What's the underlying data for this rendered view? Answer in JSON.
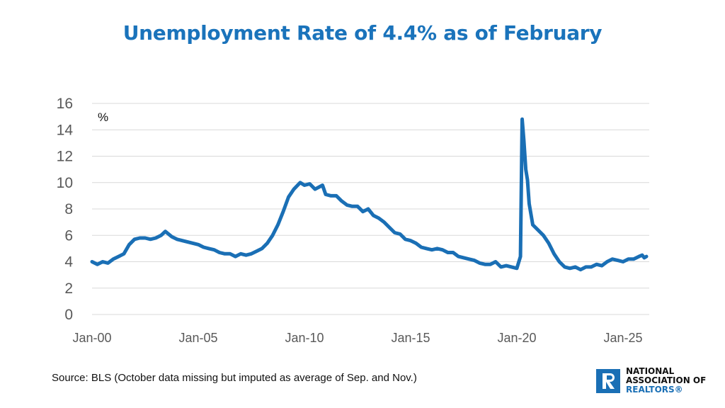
{
  "title": "Unemployment Rate of 4.4% as of February",
  "source": "Source: BLS (October data missing but imputed as average of Sep. and Nov.)",
  "logo": {
    "line1": "NATIONAL",
    "line2": "ASSOCIATION OF",
    "line3": "REALTORS®",
    "icon": "realtor-r-logo-icon"
  },
  "colors": {
    "line": "#1a6fb5",
    "title": "#1a73bb",
    "grid": "#d9d9d9",
    "axis_text": "#595959"
  },
  "chart_data": {
    "type": "line",
    "title": "Unemployment Rate of 4.4% as of February",
    "xlabel": "",
    "ylabel": "%",
    "ylim": [
      0,
      16
    ],
    "yticks": [
      0,
      2,
      4,
      6,
      8,
      10,
      12,
      14,
      16
    ],
    "xticks": [
      {
        "label": "Jan-00",
        "t": 2000.0
      },
      {
        "label": "Jan-05",
        "t": 2005.0
      },
      {
        "label": "Jan-10",
        "t": 2010.0
      },
      {
        "label": "Jan-15",
        "t": 2015.0
      },
      {
        "label": "Jan-20",
        "t": 2020.0
      },
      {
        "label": "Jan-25",
        "t": 2025.0
      }
    ],
    "xlim": [
      2000.0,
      2026.1
    ],
    "grid": true,
    "series": [
      {
        "name": "Unemployment rate",
        "points": [
          [
            2000.0,
            4.0
          ],
          [
            2000.25,
            3.8
          ],
          [
            2000.5,
            4.0
          ],
          [
            2000.75,
            3.9
          ],
          [
            2001.0,
            4.2
          ],
          [
            2001.25,
            4.4
          ],
          [
            2001.5,
            4.6
          ],
          [
            2001.75,
            5.3
          ],
          [
            2002.0,
            5.7
          ],
          [
            2002.25,
            5.8
          ],
          [
            2002.5,
            5.8
          ],
          [
            2002.75,
            5.7
          ],
          [
            2003.0,
            5.8
          ],
          [
            2003.25,
            6.0
          ],
          [
            2003.45,
            6.3
          ],
          [
            2003.75,
            5.9
          ],
          [
            2004.0,
            5.7
          ],
          [
            2004.25,
            5.6
          ],
          [
            2004.5,
            5.5
          ],
          [
            2004.75,
            5.4
          ],
          [
            2005.0,
            5.3
          ],
          [
            2005.25,
            5.1
          ],
          [
            2005.5,
            5.0
          ],
          [
            2005.75,
            4.9
          ],
          [
            2006.0,
            4.7
          ],
          [
            2006.25,
            4.6
          ],
          [
            2006.5,
            4.6
          ],
          [
            2006.75,
            4.4
          ],
          [
            2007.0,
            4.6
          ],
          [
            2007.25,
            4.5
          ],
          [
            2007.5,
            4.6
          ],
          [
            2007.75,
            4.8
          ],
          [
            2008.0,
            5.0
          ],
          [
            2008.25,
            5.4
          ],
          [
            2008.5,
            6.0
          ],
          [
            2008.75,
            6.8
          ],
          [
            2009.0,
            7.8
          ],
          [
            2009.25,
            8.9
          ],
          [
            2009.5,
            9.5
          ],
          [
            2009.8,
            10.0
          ],
          [
            2010.0,
            9.8
          ],
          [
            2010.25,
            9.9
          ],
          [
            2010.5,
            9.5
          ],
          [
            2010.85,
            9.8
          ],
          [
            2011.0,
            9.1
          ],
          [
            2011.25,
            9.0
          ],
          [
            2011.5,
            9.0
          ],
          [
            2011.75,
            8.6
          ],
          [
            2012.0,
            8.3
          ],
          [
            2012.25,
            8.2
          ],
          [
            2012.5,
            8.2
          ],
          [
            2012.75,
            7.8
          ],
          [
            2013.0,
            8.0
          ],
          [
            2013.25,
            7.5
          ],
          [
            2013.5,
            7.3
          ],
          [
            2013.75,
            7.0
          ],
          [
            2014.0,
            6.6
          ],
          [
            2014.25,
            6.2
          ],
          [
            2014.5,
            6.1
          ],
          [
            2014.75,
            5.7
          ],
          [
            2015.0,
            5.6
          ],
          [
            2015.25,
            5.4
          ],
          [
            2015.5,
            5.1
          ],
          [
            2015.75,
            5.0
          ],
          [
            2016.0,
            4.9
          ],
          [
            2016.25,
            5.0
          ],
          [
            2016.5,
            4.9
          ],
          [
            2016.75,
            4.7
          ],
          [
            2017.0,
            4.7
          ],
          [
            2017.25,
            4.4
          ],
          [
            2017.5,
            4.3
          ],
          [
            2017.75,
            4.2
          ],
          [
            2018.0,
            4.1
          ],
          [
            2018.25,
            3.9
          ],
          [
            2018.5,
            3.8
          ],
          [
            2018.75,
            3.8
          ],
          [
            2019.0,
            4.0
          ],
          [
            2019.25,
            3.6
          ],
          [
            2019.5,
            3.7
          ],
          [
            2019.75,
            3.6
          ],
          [
            2020.0,
            3.5
          ],
          [
            2020.17,
            4.4
          ],
          [
            2020.25,
            14.8
          ],
          [
            2020.33,
            13.2
          ],
          [
            2020.42,
            11.0
          ],
          [
            2020.5,
            10.2
          ],
          [
            2020.58,
            8.4
          ],
          [
            2020.75,
            6.8
          ],
          [
            2021.0,
            6.4
          ],
          [
            2021.25,
            6.0
          ],
          [
            2021.5,
            5.4
          ],
          [
            2021.75,
            4.6
          ],
          [
            2022.0,
            4.0
          ],
          [
            2022.25,
            3.6
          ],
          [
            2022.5,
            3.5
          ],
          [
            2022.75,
            3.6
          ],
          [
            2023.0,
            3.4
          ],
          [
            2023.25,
            3.6
          ],
          [
            2023.5,
            3.6
          ],
          [
            2023.75,
            3.8
          ],
          [
            2024.0,
            3.7
          ],
          [
            2024.25,
            4.0
          ],
          [
            2024.5,
            4.2
          ],
          [
            2024.75,
            4.1
          ],
          [
            2025.0,
            4.0
          ],
          [
            2025.25,
            4.2
          ],
          [
            2025.5,
            4.2
          ],
          [
            2025.75,
            4.4
          ],
          [
            2025.9,
            4.5
          ],
          [
            2026.0,
            4.3
          ],
          [
            2026.1,
            4.4
          ]
        ]
      }
    ]
  }
}
